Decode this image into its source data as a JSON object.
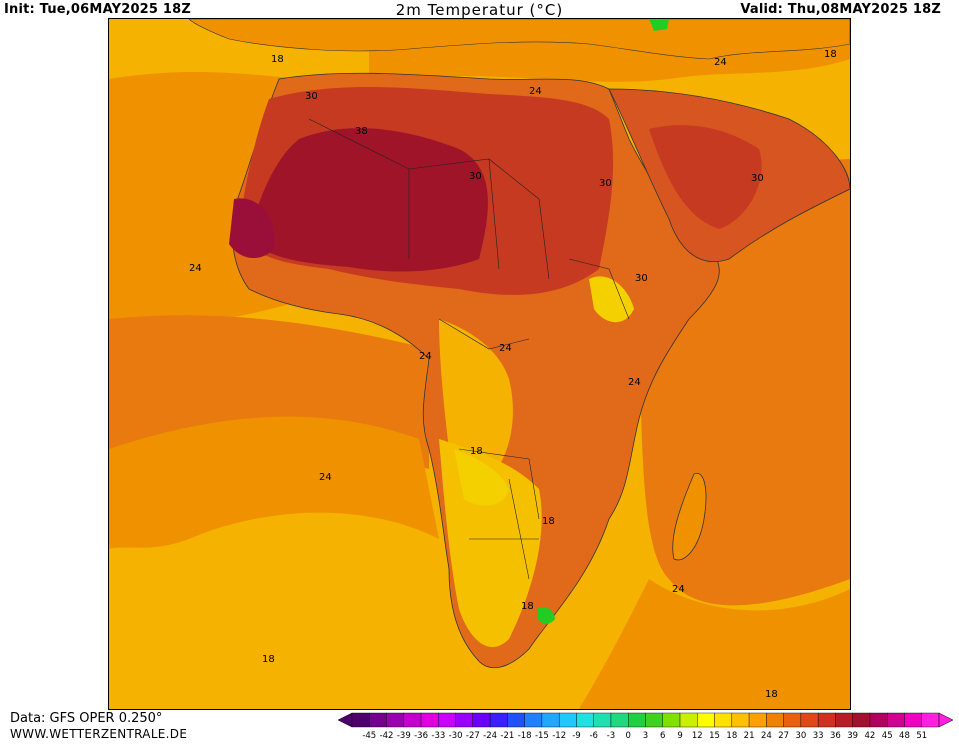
{
  "header": {
    "init_text": "Init: Tue,06MAY2025 18Z",
    "title": "2m Temperatur (°C)",
    "valid_text": "Valid: Thu,08MAY2025 18Z"
  },
  "footer": {
    "data_source": "Data: GFS OPER 0.250°",
    "website": "WWW.WETTERZENTRALE.DE"
  },
  "map": {
    "region": "Africa",
    "contour_labels": [
      "18",
      "30",
      "38",
      "24",
      "30",
      "24",
      "30",
      "18",
      "24",
      "30",
      "24",
      "30",
      "24",
      "24",
      "18",
      "24",
      "18",
      "18",
      "24",
      "18",
      "18"
    ],
    "colors": {
      "ocean_18": "#f5b200",
      "ocean_21": "#f09200",
      "ocean_24": "#e87a10",
      "land_27": "#e06a1a",
      "land_30": "#d65520",
      "land_33": "#c63a22",
      "land_36": "#b12325",
      "land_39": "#a0142a",
      "land_42": "#9a0f3a",
      "land_15": "#f5d000",
      "land_12": "#f8e300",
      "green": "#22cc22"
    }
  },
  "legend": {
    "ticks": [
      "-45",
      "-42",
      "-39",
      "-36",
      "-33",
      "-30",
      "-27",
      "-24",
      "-21",
      "-18",
      "-15",
      "-12",
      "-9",
      "-6",
      "-3",
      "0",
      "3",
      "6",
      "9",
      "12",
      "15",
      "18",
      "21",
      "24",
      "27",
      "30",
      "33",
      "36",
      "39",
      "42",
      "45",
      "48",
      "51"
    ],
    "colors": [
      "#4d006b",
      "#74008e",
      "#9a00b0",
      "#c400cc",
      "#e000e0",
      "#cc00ff",
      "#9a00ff",
      "#6a00ff",
      "#3a20ff",
      "#2050ff",
      "#2080ff",
      "#20a8ff",
      "#20c8ff",
      "#20e0e0",
      "#20e0b0",
      "#20d880",
      "#20d040",
      "#40d020",
      "#80e000",
      "#c8f000",
      "#ffff00",
      "#ffe000",
      "#ffc000",
      "#ffa000",
      "#f08000",
      "#e86010",
      "#e04818",
      "#d03020",
      "#b81c28",
      "#a01030",
      "#b00060",
      "#d00090",
      "#f000c0",
      "#ff20e0"
    ]
  }
}
